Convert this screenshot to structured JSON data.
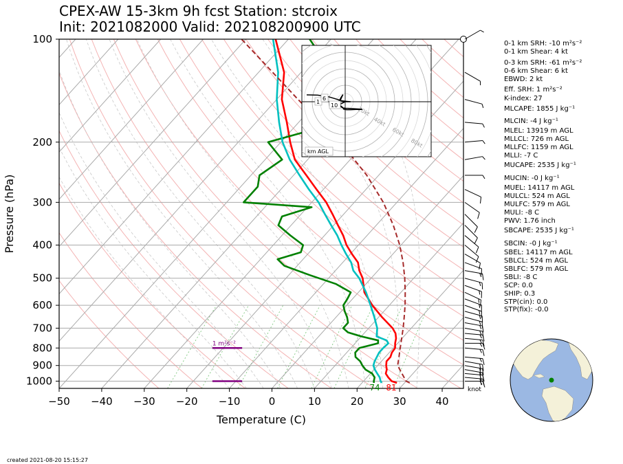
{
  "header": {
    "line1": "CPEX-AW 15-3km  9h fcst  Station: stcroix",
    "line2": "Init: 2021082000  Valid: 202108200900 UTC"
  },
  "chart_data": {
    "type": "line",
    "subtype": "skew-t log-p sounding",
    "xlabel": "Temperature (C)",
    "ylabel": "Pressure (hPa)",
    "xlim": [
      -50,
      45
    ],
    "ylim": [
      1050,
      100
    ],
    "y_scale": "log",
    "x_ticks": [
      "−50",
      "−40",
      "−30",
      "−20",
      "−10",
      "0",
      "10",
      "20",
      "30",
      "40"
    ],
    "x_tick_values": [
      -50,
      -40,
      -30,
      -20,
      -10,
      0,
      10,
      20,
      30,
      40
    ],
    "y_ticks": [
      "100",
      "200",
      "300",
      "400",
      "500",
      "600",
      "700",
      "800",
      "900",
      "1000"
    ],
    "y_tick_values": [
      100,
      200,
      300,
      400,
      500,
      600,
      700,
      800,
      900,
      1000
    ],
    "grid": true,
    "series": [
      {
        "key": "temperature",
        "color": "#ff0000",
        "points": [
          [
            1012,
            28.2
          ],
          [
            1000,
            26.6
          ],
          [
            975,
            25.0
          ],
          [
            950,
            23.6
          ],
          [
            925,
            23.0
          ],
          [
            900,
            22.0
          ],
          [
            875,
            21.2
          ],
          [
            850,
            21.2
          ],
          [
            825,
            20.6
          ],
          [
            800,
            20.4
          ],
          [
            775,
            19.4
          ],
          [
            750,
            18.6
          ],
          [
            725,
            17.4
          ],
          [
            700,
            15.6
          ],
          [
            650,
            10.8
          ],
          [
            600,
            6.0
          ],
          [
            550,
            1.4
          ],
          [
            500,
            -2.0
          ],
          [
            475,
            -4.4
          ],
          [
            450,
            -6.4
          ],
          [
            425,
            -9.6
          ],
          [
            400,
            -12.8
          ],
          [
            375,
            -15.6
          ],
          [
            350,
            -19.0
          ],
          [
            325,
            -22.6
          ],
          [
            300,
            -26.6
          ],
          [
            275,
            -31.6
          ],
          [
            250,
            -37.0
          ],
          [
            225,
            -43.0
          ],
          [
            200,
            -47.8
          ],
          [
            175,
            -52.8
          ],
          [
            150,
            -58.8
          ],
          [
            125,
            -64.0
          ],
          [
            100,
            -73.0
          ]
        ]
      },
      {
        "key": "dewpoint",
        "color": "#008000",
        "points": [
          [
            1012,
            22.8
          ],
          [
            1000,
            22.4
          ],
          [
            975,
            21.8
          ],
          [
            950,
            20.4
          ],
          [
            925,
            18.0
          ],
          [
            900,
            16.4
          ],
          [
            875,
            15.0
          ],
          [
            850,
            13.0
          ],
          [
            825,
            12.0
          ],
          [
            800,
            12.0
          ],
          [
            775,
            15.4
          ],
          [
            760,
            14.8
          ],
          [
            740,
            10.0
          ],
          [
            720,
            6.0
          ],
          [
            700,
            4.0
          ],
          [
            675,
            4.0
          ],
          [
            650,
            2.6
          ],
          [
            625,
            0.8
          ],
          [
            600,
            -0.8
          ],
          [
            575,
            -1.2
          ],
          [
            550,
            -1.8
          ],
          [
            520,
            -7.0
          ],
          [
            490,
            -15.0
          ],
          [
            460,
            -23.0
          ],
          [
            440,
            -26.0
          ],
          [
            420,
            -22.0
          ],
          [
            400,
            -23.0
          ],
          [
            375,
            -28.0
          ],
          [
            350,
            -33.0
          ],
          [
            330,
            -34.0
          ],
          [
            310,
            -29.0
          ],
          [
            300,
            -46.0
          ],
          [
            270,
            -46.0
          ],
          [
            250,
            -48.0
          ],
          [
            225,
            -46.0
          ],
          [
            200,
            -53.0
          ],
          [
            180,
            -43.0
          ],
          [
            160,
            -48.0
          ],
          [
            150,
            -48.0
          ],
          [
            130,
            -52.0
          ],
          [
            120,
            -55.0
          ],
          [
            100,
            -65.0
          ]
        ]
      },
      {
        "key": "wetbulb",
        "color": "#00c0c0",
        "points": [
          [
            1012,
            24.6
          ],
          [
            1000,
            24.0
          ],
          [
            975,
            23.0
          ],
          [
            950,
            21.6
          ],
          [
            925,
            20.2
          ],
          [
            900,
            19.0
          ],
          [
            875,
            18.4
          ],
          [
            850,
            18.0
          ],
          [
            825,
            17.6
          ],
          [
            800,
            17.6
          ],
          [
            775,
            17.8
          ],
          [
            760,
            16.8
          ],
          [
            740,
            13.6
          ],
          [
            700,
            12.0
          ],
          [
            650,
            9.0
          ],
          [
            600,
            5.6
          ],
          [
            550,
            1.8
          ],
          [
            500,
            -2.8
          ],
          [
            475,
            -5.8
          ],
          [
            450,
            -8.0
          ],
          [
            425,
            -11.0
          ],
          [
            400,
            -14.0
          ],
          [
            375,
            -17.0
          ],
          [
            350,
            -20.6
          ],
          [
            325,
            -24.4
          ],
          [
            300,
            -28.4
          ],
          [
            275,
            -33.4
          ],
          [
            250,
            -38.6
          ],
          [
            225,
            -44.2
          ],
          [
            200,
            -49.6
          ],
          [
            175,
            -54.6
          ],
          [
            150,
            -60.0
          ],
          [
            125,
            -65.4
          ],
          [
            100,
            -73.6
          ]
        ]
      },
      {
        "key": "parcel",
        "color": "#a52a2a",
        "dashed": true,
        "points": [
          [
            1012,
            31.2
          ],
          [
            1000,
            30.0
          ],
          [
            950,
            27.4
          ],
          [
            900,
            24.7
          ],
          [
            850,
            23.2
          ],
          [
            800,
            21.6
          ],
          [
            750,
            19.9
          ],
          [
            700,
            18.1
          ],
          [
            650,
            16.0
          ],
          [
            600,
            13.7
          ],
          [
            550,
            11.0
          ],
          [
            500,
            7.9
          ],
          [
            450,
            4.2
          ],
          [
            400,
            -0.3
          ],
          [
            350,
            -6.0
          ],
          [
            300,
            -13.2
          ],
          [
            250,
            -22.8
          ],
          [
            200,
            -36.0
          ],
          [
            150,
            -55.0
          ],
          [
            100,
            -81.0
          ]
        ]
      }
    ],
    "srh_bars": [
      {
        "label": "1 m²s⁻²",
        "pressure": 800,
        "x_from": -14,
        "x_to": -7
      },
      {
        "label": "",
        "pressure": 1000,
        "x_from": -14,
        "x_to": -7
      }
    ],
    "surface_labels": {
      "dewpoint_f": "74",
      "temperature_f": "81"
    },
    "wind_unit_label": "knot",
    "wind_barbs": [
      {
        "p": 1000,
        "dir": 90,
        "spd": 15
      },
      {
        "p": 975,
        "dir": 95,
        "spd": 20
      },
      {
        "p": 950,
        "dir": 95,
        "spd": 20
      },
      {
        "p": 925,
        "dir": 100,
        "spd": 20
      },
      {
        "p": 900,
        "dir": 100,
        "spd": 20
      },
      {
        "p": 875,
        "dir": 100,
        "spd": 20
      },
      {
        "p": 850,
        "dir": 95,
        "spd": 15
      },
      {
        "p": 800,
        "dir": 95,
        "spd": 15
      },
      {
        "p": 775,
        "dir": 90,
        "spd": 15
      },
      {
        "p": 750,
        "dir": 95,
        "spd": 15
      },
      {
        "p": 725,
        "dir": 95,
        "spd": 15
      },
      {
        "p": 700,
        "dir": 100,
        "spd": 15
      },
      {
        "p": 675,
        "dir": 100,
        "spd": 15
      },
      {
        "p": 650,
        "dir": 105,
        "spd": 15
      },
      {
        "p": 625,
        "dir": 105,
        "spd": 15
      },
      {
        "p": 600,
        "dir": 110,
        "spd": 15
      },
      {
        "p": 575,
        "dir": 110,
        "spd": 15
      },
      {
        "p": 550,
        "dir": 115,
        "spd": 15
      },
      {
        "p": 525,
        "dir": 110,
        "spd": 15
      },
      {
        "p": 500,
        "dir": 105,
        "spd": 15
      },
      {
        "p": 475,
        "dir": 100,
        "spd": 15
      },
      {
        "p": 450,
        "dir": 110,
        "spd": 10
      },
      {
        "p": 425,
        "dir": 120,
        "spd": 10
      },
      {
        "p": 400,
        "dir": 130,
        "spd": 10
      },
      {
        "p": 375,
        "dir": 130,
        "spd": 10
      },
      {
        "p": 350,
        "dir": 135,
        "spd": 10
      },
      {
        "p": 325,
        "dir": 135,
        "spd": 10
      },
      {
        "p": 300,
        "dir": 125,
        "spd": 10
      },
      {
        "p": 275,
        "dir": 115,
        "spd": 10
      },
      {
        "p": 250,
        "dir": 90,
        "spd": 5
      },
      {
        "p": 225,
        "dir": 80,
        "spd": 5
      },
      {
        "p": 200,
        "dir": 85,
        "spd": 5
      },
      {
        "p": 175,
        "dir": 95,
        "spd": 5
      },
      {
        "p": 150,
        "dir": 105,
        "spd": 5
      },
      {
        "p": 125,
        "dir": 120,
        "spd": 5
      },
      {
        "p": 100,
        "dir": 60,
        "spd": 5
      }
    ],
    "hodograph": {
      "range_labels": [
        "20kt",
        "40kt",
        "60kt",
        "80kt"
      ],
      "height_labels": [
        "1",
        "6",
        "10"
      ],
      "legend_label": "km AGL",
      "u_v_trace": [
        [
          -14,
          2.5
        ],
        [
          -10,
          2.4
        ],
        [
          -6,
          1.8
        ],
        [
          -4,
          1.2
        ],
        [
          -2,
          0.6
        ],
        [
          -1,
          0.3
        ],
        [
          0,
          0.2
        ],
        [
          1,
          0.1
        ],
        [
          2,
          0
        ],
        [
          0,
          0
        ],
        [
          -2,
          -1
        ],
        [
          -2,
          -1.5
        ],
        [
          -1,
          -2.2
        ],
        [
          0.2,
          -2.4
        ],
        [
          1,
          -2.4
        ],
        [
          4,
          -2.6
        ],
        [
          6,
          -2.7
        ],
        [
          6,
          -2.8
        ],
        [
          4,
          -2.8
        ],
        [
          2,
          -2.9
        ],
        [
          0.5,
          -2.9
        ],
        [
          -0.5,
          -2.7
        ],
        [
          -1,
          -2
        ],
        [
          -2,
          -1.2
        ],
        [
          -1.8,
          0.5
        ],
        [
          -1.2,
          1.8
        ],
        [
          -0.8,
          2.6
        ],
        [
          -1.5,
          1.6
        ],
        [
          -2,
          0.6
        ],
        [
          -3,
          -0.5
        ],
        [
          -4,
          -1.2
        ],
        [
          -4.5,
          -1
        ]
      ]
    }
  },
  "indices": [
    {
      "key": "srh1",
      "label": "0-1 km SRH: -10 m²s⁻²"
    },
    {
      "key": "shear1",
      "label": "0-1 km Shear: 4 kt"
    },
    {
      "key": "srh3",
      "label": "0-3 km SRH: -61 m²s⁻²"
    },
    {
      "key": "shear6",
      "label": "0-6 km Shear: 6 kt"
    },
    {
      "key": "ebwd",
      "label": "EBWD: 2 kt"
    },
    {
      "key": "esrh",
      "label": "Eff. SRH: 1 m²s⁻²"
    },
    {
      "key": "kindex",
      "label": "K-index: 27"
    },
    {
      "key": "mlcape",
      "label": "MLCAPE: 1855 J kg⁻¹"
    },
    {
      "key": "mlcin",
      "label": "MLCIN: -4 J kg⁻¹"
    },
    {
      "key": "mlel",
      "label": "MLEL: 13919 m AGL"
    },
    {
      "key": "mllcl",
      "label": "MLLCL: 726 m AGL"
    },
    {
      "key": "mllfc",
      "label": "MLLFC: 1159 m AGL"
    },
    {
      "key": "mlli",
      "label": "MLLI: -7 C"
    },
    {
      "key": "mucape",
      "label": "MUCAPE: 2535 J kg⁻¹"
    },
    {
      "key": "mucin",
      "label": "MUCIN: -0 J kg⁻¹"
    },
    {
      "key": "muel",
      "label": "MUEL: 14117 m AGL"
    },
    {
      "key": "mulcl",
      "label": "MULCL: 524 m AGL"
    },
    {
      "key": "mulfc",
      "label": "MULFC: 579 m AGL"
    },
    {
      "key": "muli",
      "label": "MULI: -8 C"
    },
    {
      "key": "pwv",
      "label": "PWV: 1.76 inch"
    },
    {
      "key": "sbcape",
      "label": "SBCAPE: 2535 J kg⁻¹"
    },
    {
      "key": "sbcin",
      "label": "SBCIN: -0 J kg⁻¹"
    },
    {
      "key": "sbel",
      "label": "SBEL: 14117 m AGL"
    },
    {
      "key": "sblcl",
      "label": "SBLCL: 524 m AGL"
    },
    {
      "key": "sblfc",
      "label": "SBLFC: 579 m AGL"
    },
    {
      "key": "sbli",
      "label": "SBLI: -8 C"
    },
    {
      "key": "scp",
      "label": "SCP: 0.0"
    },
    {
      "key": "ship",
      "label": "SHIP: 0.3"
    },
    {
      "key": "stpcin",
      "label": "STP(cin): 0.0"
    },
    {
      "key": "stpfix",
      "label": "STP(fix): -0.0"
    }
  ],
  "colors": {
    "ocean": "#9bb8e3",
    "land": "#f4f1d9",
    "station_marker": "#008000",
    "srh_bar": "#800080"
  },
  "footer": {
    "created": "created 2021-08-20 15:15:27"
  }
}
